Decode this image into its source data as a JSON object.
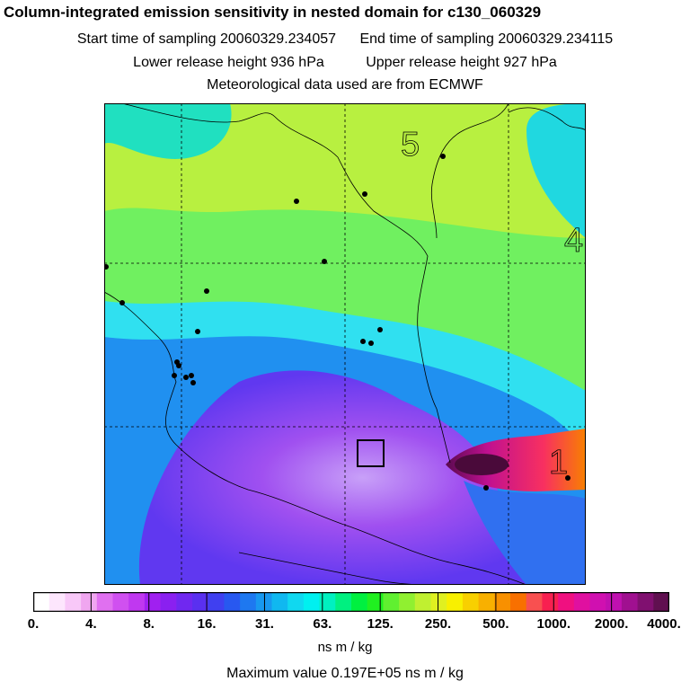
{
  "header": {
    "title": "Column-integrated emission sensitivity in nested domain for c130_060329",
    "start": "Start time of sampling 20060329.234057",
    "end": "End time of sampling 20060329.234115",
    "lower": "Lower release height  936 hPa",
    "upper": "Upper release height  927 hPa",
    "met": "Meteorological data used are from ECMWF"
  },
  "map": {
    "labels": [
      "5",
      "4",
      "1"
    ],
    "stations": "black dots"
  },
  "colorbar": {
    "ticks": [
      "0.",
      "4.",
      "8.",
      "16.",
      "31.",
      "63.",
      "125.",
      "250.",
      "500.",
      "1000.",
      "2000.",
      "4000."
    ],
    "colors": [
      "#ffffff",
      "#fde6fd",
      "#f8c8f8",
      "#f0a6f0",
      "#e070f0",
      "#d050f0",
      "#c038f0",
      "#a020f0",
      "#8a20f0",
      "#7028f0",
      "#5a30f0",
      "#4040f0",
      "#2858f0",
      "#1e78f0",
      "#1898f0",
      "#10b8f0",
      "#10d8f0",
      "#00f0f0",
      "#00f0c0",
      "#00f080",
      "#00f040",
      "#20f020",
      "#60f030",
      "#90f030",
      "#c0f030",
      "#e0f020",
      "#f8f000",
      "#f8d000",
      "#f8b000",
      "#f89000",
      "#f87000",
      "#f85050",
      "#f82050",
      "#f01080",
      "#e010a0",
      "#d010b0",
      "#c010b0",
      "#a01090",
      "#801070",
      "#601050"
    ],
    "unit": "ns m / kg"
  },
  "max_value": "Maximum value  0.197E+05 ns m / kg"
}
